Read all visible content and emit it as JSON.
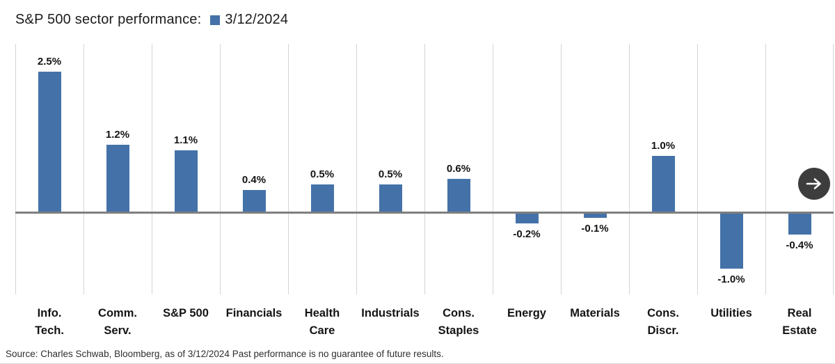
{
  "header": {
    "title": "S&P 500 sector performance:",
    "legend": {
      "label": "3/12/2024",
      "swatch_color": "#4472a8"
    }
  },
  "chart_data": {
    "type": "bar",
    "title": "S&P 500 sector performance:",
    "series_name": "3/12/2024",
    "categories": [
      "Info.\nTech.",
      "Comm.\nServ.",
      "S&P 500",
      "Financials",
      "Health\nCare",
      "Industrials",
      "Cons.\nStaples",
      "Energy",
      "Materials",
      "Cons.\nDiscr.",
      "Utilities",
      "Real\nEstate"
    ],
    "values": [
      2.5,
      1.2,
      1.1,
      0.4,
      0.5,
      0.5,
      0.6,
      -0.2,
      -0.1,
      1.0,
      -1.0,
      -0.4
    ],
    "value_labels": [
      "2.5%",
      "1.2%",
      "1.1%",
      "0.4%",
      "0.5%",
      "0.5%",
      "0.6%",
      "-0.2%",
      "-0.1%",
      "1.0%",
      "-1.0%",
      "-0.4%"
    ],
    "ylim": [
      -1.46,
      3.0
    ],
    "bar_color": "#4472a8",
    "zero_line_color": "#7f7f7f",
    "gridline_color": "#d5d5d5",
    "grid": "vertical-only",
    "legend_position": "top-inline-with-title"
  },
  "controls": {
    "next_button": {
      "icon": "right-arrow",
      "bg_color": "#3d3d3d",
      "fg_color": "#ffffff"
    }
  },
  "footer": {
    "source": "Source: Charles Schwab, Bloomberg, as of 3/12/2024 Past performance is no guarantee of future results."
  }
}
